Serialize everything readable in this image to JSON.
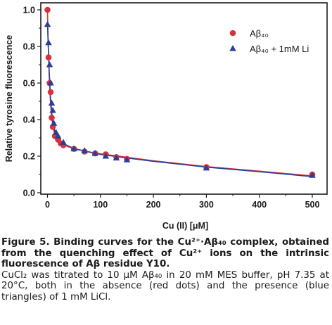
{
  "chart_data": {
    "type": "scatter",
    "title": "",
    "xlabel": "Cu (II) [μM]",
    "ylabel": "Relative tyrosine fluorescence",
    "xlim": [
      0,
      520
    ],
    "ylim": [
      0,
      1.03
    ],
    "x_ticks": [
      0,
      100,
      200,
      300,
      400,
      500
    ],
    "y_ticks": [
      0.0,
      0.2,
      0.4,
      0.6,
      0.8,
      1.0
    ],
    "x_tick_labels": [
      "0",
      "100",
      "200",
      "300",
      "400",
      "500"
    ],
    "y_tick_labels": [
      "0.0",
      "0.2",
      "0.4",
      "0.6",
      "0.8",
      "1.0"
    ],
    "legend_position": "top-right",
    "series": [
      {
        "name": "Aβ₄₀",
        "marker": "circle",
        "color": "#d8323a",
        "points": [
          [
            0,
            1.0
          ],
          [
            2,
            0.74
          ],
          [
            4,
            0.6
          ],
          [
            6,
            0.55
          ],
          [
            8,
            0.41
          ],
          [
            10,
            0.36
          ],
          [
            14,
            0.31
          ],
          [
            20,
            0.29
          ],
          [
            25,
            0.27
          ],
          [
            30,
            0.26
          ],
          [
            50,
            0.24
          ],
          [
            70,
            0.225
          ],
          [
            90,
            0.215
          ],
          [
            110,
            0.21
          ],
          [
            130,
            0.195
          ],
          [
            150,
            0.185
          ],
          [
            300,
            0.14
          ],
          [
            500,
            0.1
          ]
        ]
      },
      {
        "name": "Aβ₄₀ + 1mM Li",
        "marker": "triangle",
        "color": "#2b3f95",
        "points": [
          [
            0,
            0.92
          ],
          [
            2,
            0.82
          ],
          [
            4,
            0.7
          ],
          [
            6,
            0.6
          ],
          [
            8,
            0.49
          ],
          [
            10,
            0.45
          ],
          [
            12,
            0.38
          ],
          [
            16,
            0.33
          ],
          [
            20,
            0.31
          ],
          [
            30,
            0.275
          ],
          [
            50,
            0.24
          ],
          [
            70,
            0.23
          ],
          [
            90,
            0.215
          ],
          [
            110,
            0.2
          ],
          [
            130,
            0.19
          ],
          [
            150,
            0.18
          ],
          [
            300,
            0.135
          ],
          [
            500,
            0.095
          ]
        ]
      }
    ],
    "fit_curves": [
      {
        "color": "#d8323a",
        "points": [
          [
            0,
            1.0
          ],
          [
            1,
            0.86
          ],
          [
            2,
            0.75
          ],
          [
            3,
            0.66
          ],
          [
            4,
            0.59
          ],
          [
            5,
            0.53
          ],
          [
            6,
            0.48
          ],
          [
            8,
            0.41
          ],
          [
            10,
            0.37
          ],
          [
            12,
            0.34
          ],
          [
            15,
            0.31
          ],
          [
            20,
            0.285
          ],
          [
            30,
            0.262
          ],
          [
            50,
            0.24
          ],
          [
            75,
            0.225
          ],
          [
            100,
            0.213
          ],
          [
            150,
            0.194
          ],
          [
            200,
            0.175
          ],
          [
            300,
            0.143
          ],
          [
            400,
            0.118
          ],
          [
            500,
            0.092
          ]
        ]
      },
      {
        "color": "#2b3f95",
        "points": [
          [
            0,
            0.93
          ],
          [
            1,
            0.84
          ],
          [
            2,
            0.76
          ],
          [
            3,
            0.68
          ],
          [
            4,
            0.62
          ],
          [
            5,
            0.56
          ],
          [
            6,
            0.51
          ],
          [
            8,
            0.44
          ],
          [
            10,
            0.39
          ],
          [
            12,
            0.355
          ],
          [
            15,
            0.32
          ],
          [
            20,
            0.295
          ],
          [
            30,
            0.268
          ],
          [
            50,
            0.242
          ],
          [
            75,
            0.225
          ],
          [
            100,
            0.21
          ],
          [
            150,
            0.19
          ],
          [
            200,
            0.172
          ],
          [
            300,
            0.14
          ],
          [
            400,
            0.115
          ],
          [
            500,
            0.088
          ]
        ]
      }
    ]
  },
  "caption": {
    "title": "Figure 5. Binding curves for the Cu²⁺·Aβ₄₀ complex, obtained from the quenching effect of Cu²⁺ ions on the intrinsic fluorescence of Aβ residue Y10.",
    "body": "CuCl₂ was titrated to 10 μM Aβ₄₀ in 20 mM MES buffer, pH 7.35 at 20°C, both in the absence (red dots) and the presence (blue triangles) of 1 mM LiCl."
  }
}
